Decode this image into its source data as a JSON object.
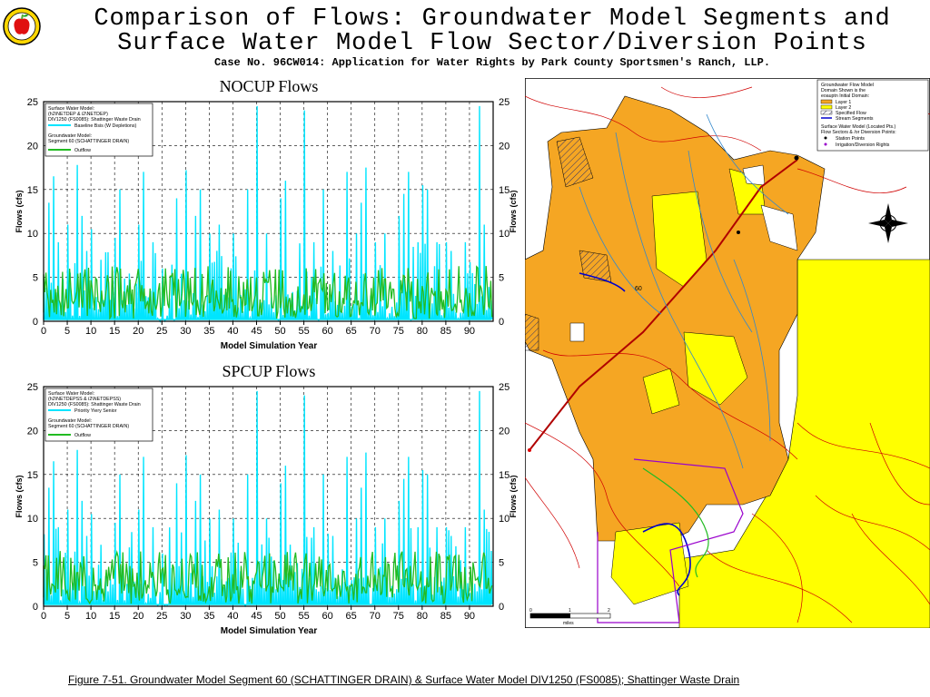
{
  "header": {
    "title_line1": "Comparison of Flows: Groundwater Model Segments and",
    "title_line2": "Surface Water Model Flow Sector/Diversion Points",
    "case_line": "Case No. 96CW014: Application for Water Rights by Park County Sportsmen's Ranch, LLP."
  },
  "footer": {
    "caption": "Figure 7-51. Groundwater Model Segment 60 (SCHATTINGER DRAIN) & Surface Water Model DIV1250 (FS0085); Shattinger Waste Drain"
  },
  "colors": {
    "surface_series": "#00e5ff",
    "groundwater_series": "#22bb22",
    "map_orange": "#f5a623",
    "map_yellow": "#ffff00"
  },
  "chart_data": [
    {
      "type": "line",
      "title": "NOCUP Flows",
      "xlabel": "Model Simulation Year",
      "ylabel_left": "Flows (cfs)",
      "ylabel_right": "Flows (cfs)",
      "xlim": [
        0,
        95
      ],
      "ylim": [
        0,
        25
      ],
      "x_ticks": [
        "0",
        "5",
        "10",
        "15",
        "20",
        "25",
        "30",
        "35",
        "40",
        "45",
        "50",
        "55",
        "60",
        "65",
        "70",
        "75",
        "80",
        "85",
        "90"
      ],
      "y_ticks": [
        "0",
        "5",
        "10",
        "15",
        "20",
        "25"
      ],
      "grid": true,
      "legend_placement": "top-left",
      "legend": {
        "lines": [
          "Surface Water Model:",
          "(h2\\NETDEP & i2\\NETDEP)",
          "DIV1250 (FS0085): Shattinger Waste Drain"
        ],
        "series1_label": "Baseline Bsis (W Depletions)",
        "gw_lines": [
          "Groundwater Model:",
          "Segment 60 (SCHATTINGER DRAIN)"
        ],
        "series2_label": "Outflow"
      },
      "series": [
        {
          "name": "Baseline Bsis (W Depletions)",
          "peaks": [
            [
              1,
              13.5
            ],
            [
              2,
              16.5
            ],
            [
              3,
              9
            ],
            [
              5,
              11
            ],
            [
              7,
              17.8
            ],
            [
              8,
              12
            ],
            [
              9,
              8
            ],
            [
              10,
              10.5
            ],
            [
              12,
              7
            ],
            [
              15,
              9.5
            ],
            [
              16,
              15
            ],
            [
              20,
              11
            ],
            [
              21,
              17
            ],
            [
              23,
              9
            ],
            [
              25,
              6
            ],
            [
              28,
              14
            ],
            [
              30,
              17.2
            ],
            [
              32,
              12
            ],
            [
              33,
              15
            ],
            [
              35,
              10
            ],
            [
              37,
              11
            ],
            [
              40,
              10
            ],
            [
              43,
              15
            ],
            [
              45,
              24.5
            ],
            [
              47,
              10
            ],
            [
              50,
              14
            ],
            [
              51,
              16
            ],
            [
              55,
              24
            ],
            [
              57,
              9
            ],
            [
              59,
              15
            ],
            [
              61,
              8
            ],
            [
              64,
              17
            ],
            [
              66,
              10
            ],
            [
              67,
              13.5
            ],
            [
              68,
              17.5
            ],
            [
              70,
              9
            ],
            [
              72,
              10
            ],
            [
              75,
              12
            ],
            [
              76,
              14.5
            ],
            [
              77,
              17
            ],
            [
              79,
              9
            ],
            [
              80,
              15.5
            ],
            [
              81,
              15
            ],
            [
              83,
              9
            ],
            [
              85,
              9
            ],
            [
              86,
              8
            ],
            [
              89,
              9
            ],
            [
              92,
              24.5
            ],
            [
              93,
              11
            ]
          ]
        },
        {
          "name": "Outflow",
          "base_range": [
            0.3,
            2.5
          ],
          "peak_range": [
            2,
            6.3
          ]
        }
      ]
    },
    {
      "type": "line",
      "title": "SPCUP Flows",
      "xlabel": "Model Simulation Year",
      "ylabel_left": "Flows (cfs)",
      "ylabel_right": "Flows (cfs)",
      "xlim": [
        0,
        95
      ],
      "ylim": [
        0,
        25
      ],
      "x_ticks": [
        "0",
        "5",
        "10",
        "15",
        "20",
        "25",
        "30",
        "35",
        "40",
        "45",
        "50",
        "55",
        "60",
        "65",
        "70",
        "75",
        "80",
        "85",
        "90"
      ],
      "y_ticks": [
        "0",
        "5",
        "10",
        "15",
        "20",
        "25"
      ],
      "grid": true,
      "legend_placement": "top-left",
      "legend": {
        "lines": [
          "Surface Water Model:",
          "(h2\\NETDEPSS & i2\\NETDEPSS)",
          "DIV1250 (FS0085): Shattinger Waste Drain"
        ],
        "series1_label": "Priority Yiery Senior",
        "gw_lines": [
          "Groundwater Model:",
          "Segment 60 (SCHATTINGER DRAIN)"
        ],
        "series2_label": "Outflow"
      },
      "series": [
        {
          "name": "Priority Yiery Senior",
          "peaks": [
            [
              1,
              13.5
            ],
            [
              2,
              16.5
            ],
            [
              3,
              9
            ],
            [
              5,
              11
            ],
            [
              7,
              17.8
            ],
            [
              8,
              12
            ],
            [
              9,
              8
            ],
            [
              10,
              10.5
            ],
            [
              12,
              7
            ],
            [
              15,
              9.5
            ],
            [
              16,
              15
            ],
            [
              20,
              11
            ],
            [
              21,
              17
            ],
            [
              23,
              9
            ],
            [
              25,
              6
            ],
            [
              28,
              14
            ],
            [
              30,
              17.2
            ],
            [
              32,
              12
            ],
            [
              33,
              15
            ],
            [
              35,
              10
            ],
            [
              37,
              11
            ],
            [
              40,
              10
            ],
            [
              43,
              15
            ],
            [
              45,
              24.5
            ],
            [
              47,
              10
            ],
            [
              50,
              14
            ],
            [
              51,
              16
            ],
            [
              55,
              24
            ],
            [
              57,
              9
            ],
            [
              59,
              15
            ],
            [
              61,
              8
            ],
            [
              64,
              17
            ],
            [
              66,
              10
            ],
            [
              67,
              13.5
            ],
            [
              68,
              17.5
            ],
            [
              70,
              9
            ],
            [
              72,
              10
            ],
            [
              75,
              12
            ],
            [
              76,
              14.5
            ],
            [
              77,
              17
            ],
            [
              79,
              9
            ],
            [
              80,
              15.5
            ],
            [
              81,
              15
            ],
            [
              83,
              9
            ],
            [
              85,
              9
            ],
            [
              86,
              8
            ],
            [
              89,
              9
            ],
            [
              92,
              24.5
            ],
            [
              93,
              11
            ]
          ]
        },
        {
          "name": "Outflow",
          "base_range": [
            0.3,
            2.5
          ],
          "peak_range": [
            2,
            6.3
          ]
        }
      ]
    }
  ],
  "map": {
    "legend": {
      "title_lines": [
        "Groundwater Flow Model",
        "Domain Shown is the",
        "eoauptn Initial Domain:"
      ],
      "items": [
        "Layer 1",
        "Layer 2",
        "Specified Flow",
        "Stream Segments"
      ],
      "sw_lines": [
        "Surface Water Model (Located Pts.)",
        "Flow Sectors & /or Diversion Points:"
      ],
      "sw_items": [
        "Station Points",
        "Irrigation/Diversion Rights"
      ]
    },
    "scale_labels": [
      "0",
      "1",
      "2"
    ],
    "scale_unit": "miles",
    "segment_label": "60"
  }
}
